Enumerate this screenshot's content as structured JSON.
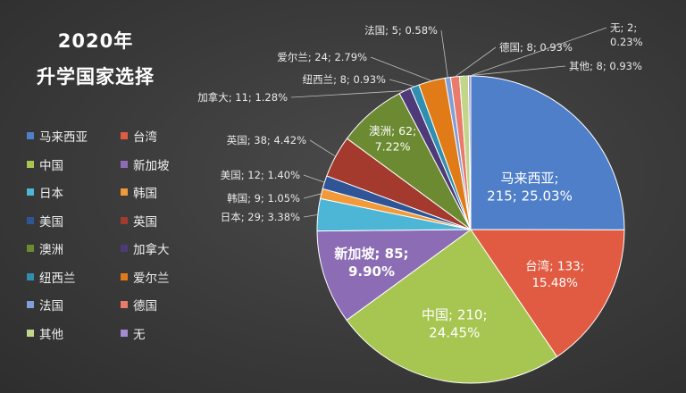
{
  "title": {
    "line1": "2020年",
    "line2": "升学国家选择"
  },
  "chart_data": {
    "type": "pie",
    "title": "2020年 升学国家选择",
    "legend_position": "left",
    "slices": [
      {
        "name": "马来西亚",
        "value": 215,
        "percent": "25.03%",
        "color": "#4f7fc9",
        "label_text": "215; 25.03%"
      },
      {
        "name": "台湾",
        "value": 133,
        "percent": "15.48%",
        "color": "#e05b41",
        "label_text": "台湾; 133;",
        "label_text2": "15.48%"
      },
      {
        "name": "中国",
        "value": 210,
        "percent": "24.45%",
        "color": "#a7c651",
        "label_text": "中国; 210;",
        "label_text2": "24.45%"
      },
      {
        "name": "新加坡",
        "value": 85,
        "percent": "9.90%",
        "color": "#8c6db5",
        "label_text": "新加坡; 85;",
        "label_text2": "9.90%"
      },
      {
        "name": "日本",
        "value": 29,
        "percent": "3.38%",
        "color": "#4db6d6",
        "label_text": "日本; 29; 3.38%"
      },
      {
        "name": "韩国",
        "value": 9,
        "percent": "1.05%",
        "color": "#f29a3a",
        "label_text": "韩国; 9; 1.05%"
      },
      {
        "name": "美国",
        "value": 12,
        "percent": "1.40%",
        "color": "#2f5597",
        "label_text": "美国; 12; 1.40%"
      },
      {
        "name": "英国",
        "value": 38,
        "percent": "4.42%",
        "color": "#a33a2d",
        "label_text": "英国; 38; 4.42%"
      },
      {
        "name": "澳洲",
        "value": 62,
        "percent": "7.22%",
        "color": "#6b8a32",
        "label_text": "澳洲; 62;",
        "label_text2": "7.22%"
      },
      {
        "name": "加拿大",
        "value": 11,
        "percent": "1.28%",
        "color": "#4e3a78",
        "label_text": "加拿大; 11; 1.28%"
      },
      {
        "name": "纽西兰",
        "value": 8,
        "percent": "0.93%",
        "color": "#2f8fb0",
        "label_text": "纽西兰; 8; 0.93%"
      },
      {
        "name": "爱尔兰",
        "value": 24,
        "percent": "2.79%",
        "color": "#e07b18",
        "label_text": "爱尔兰; 24; 2.79%"
      },
      {
        "name": "法国",
        "value": 5,
        "percent": "0.58%",
        "color": "#7f9fd6",
        "label_text": "法国; 5; 0.58%"
      },
      {
        "name": "德国",
        "value": 8,
        "percent": "0.93%",
        "color": "#ea7a6a",
        "label_text": "德国; 8; 0.93%"
      },
      {
        "name": "其他",
        "value": 8,
        "percent": "0.93%",
        "color": "#c2d68a",
        "label_text": "其他; 8; 0.93%"
      },
      {
        "name": "无",
        "value": 2,
        "percent": "0.23%",
        "color": "#a58bcf",
        "label_text": "无; 2;",
        "label_text2": "0.23%"
      }
    ]
  }
}
